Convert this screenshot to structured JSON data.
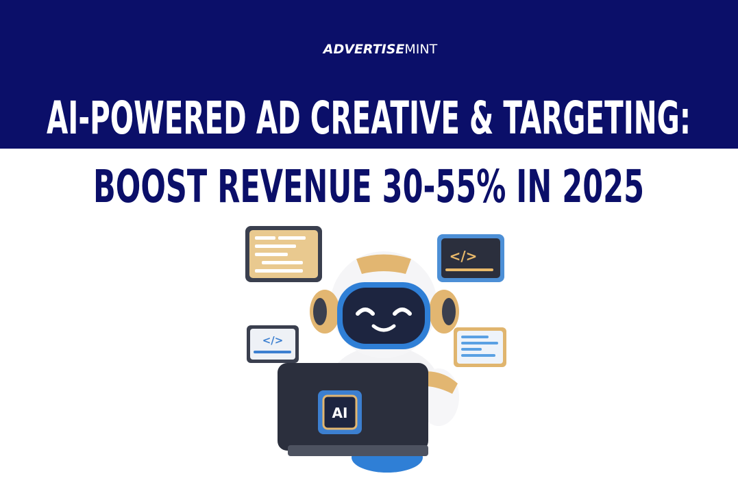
{
  "brand": {
    "bold": "ADVERTISE",
    "light": "MINT"
  },
  "title": {
    "line1": "AI-POWERED AD CREATIVE & TARGETING:",
    "line2": "BOOST REVENUE 30-55% IN 2025"
  },
  "illustration": {
    "chip_label": "AI",
    "code_tags": [
      "</>",
      "</>"
    ]
  }
}
